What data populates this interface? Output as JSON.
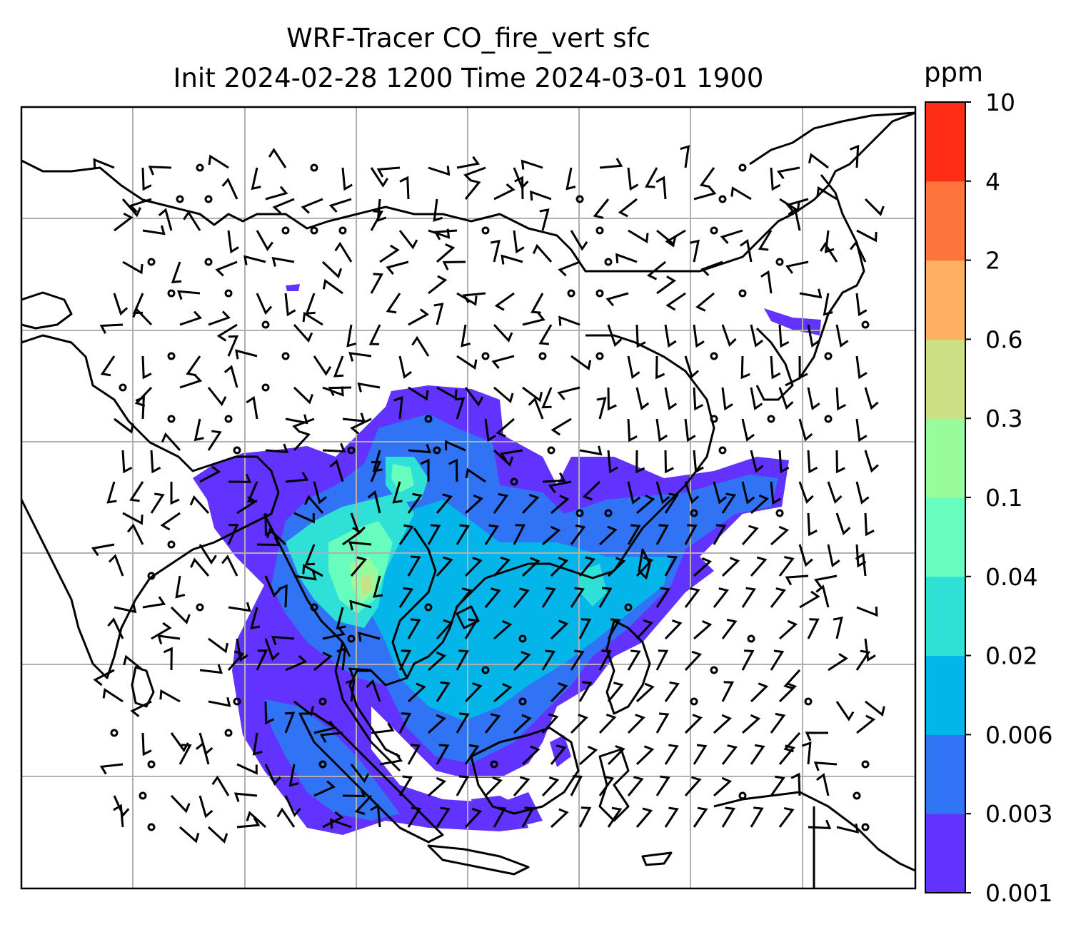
{
  "title": {
    "line1": "WRF-Tracer CO_fire_vert sfc",
    "line2": "Init 2024-02-28 1200 Time 2024-03-01 1900"
  },
  "colorbar": {
    "unit": "ppm",
    "levels": [
      "0.001",
      "0.003",
      "0.006",
      "0.02",
      "0.04",
      "0.1",
      "0.3",
      "0.6",
      "2",
      "4",
      "10"
    ],
    "colors": [
      "#6233ff",
      "#3173f5",
      "#04b5ea",
      "#2ee0d5",
      "#66fdbe",
      "#98fc9c",
      "#ccdf85",
      "#ffb062",
      "#ff733c",
      "#ff2c16"
    ]
  },
  "map": {
    "gridlines": true,
    "coastline_color": "#000000",
    "barb_color": "#000000"
  }
}
